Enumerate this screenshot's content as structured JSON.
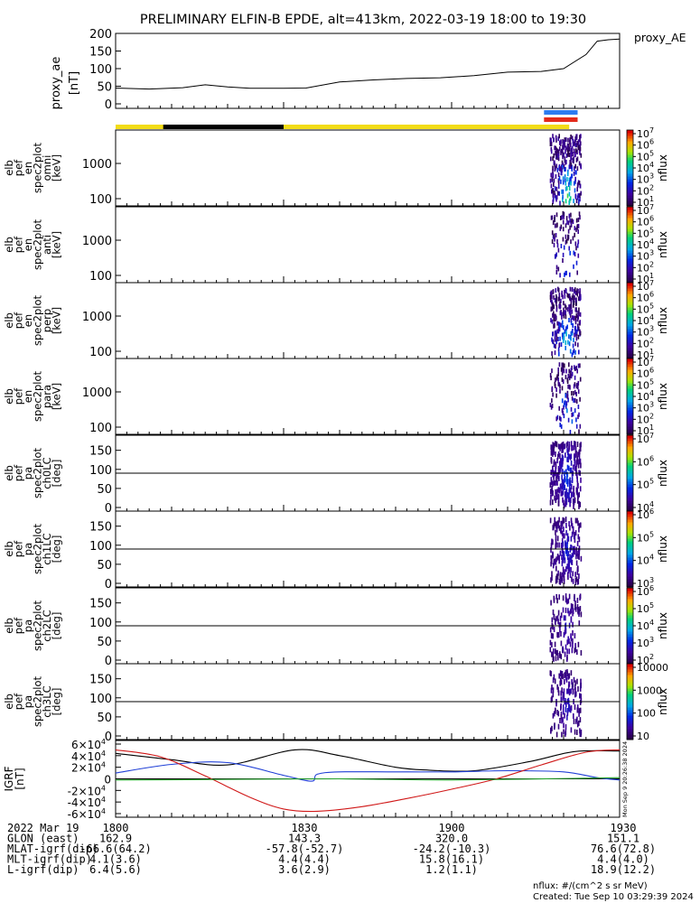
{
  "chart_data": {
    "type": "spectrogram",
    "title": "PRELIMINARY ELFIN-B EPDE, alt=413km, 2022-03-19 18:00 to 19:30",
    "x_time_range": [
      "18:00",
      "19:30"
    ],
    "x_tick_labels": [
      "1800",
      "1830",
      "1900",
      "1930"
    ],
    "proxy_ae": {
      "ylabel_lines": [
        "proxy_ae",
        "[nT]"
      ],
      "legend": "proxy_AE",
      "ylim": [
        0,
        200
      ],
      "yticks": [
        "0",
        "50",
        "100",
        "150",
        "200"
      ],
      "t_min": [
        0,
        6,
        12,
        16,
        20,
        24,
        30,
        34,
        40,
        46,
        52,
        58,
        64,
        70,
        76,
        80,
        84,
        86,
        88,
        90
      ],
      "values": [
        45,
        42,
        46,
        54,
        48,
        44,
        44,
        45,
        62,
        68,
        72,
        74,
        80,
        90,
        92,
        100,
        140,
        178,
        182,
        184
      ]
    },
    "status_bar": {
      "segments": [
        {
          "t0": 0,
          "t1": 81,
          "color": "#f2dc18"
        },
        {
          "t0": 8.5,
          "t1": 30,
          "color": "#000000"
        }
      ],
      "science_zone": {
        "t0": 76.5,
        "t1": 82.5,
        "colors": [
          "#2d7cf0",
          "#e32a1a"
        ]
      }
    },
    "energy_panels": [
      {
        "ylabel_lines": [
          "elb",
          "pef",
          "en",
          "spec2plot",
          "omni",
          "[keV]"
        ],
        "yticks": [
          "100",
          "1000"
        ],
        "intensity": 1.0
      },
      {
        "ylabel_lines": [
          "elb",
          "pef",
          "en",
          "spec2plot",
          "anti",
          "[keV]"
        ],
        "yticks": [
          "100",
          "1000"
        ],
        "intensity": 0.35
      },
      {
        "ylabel_lines": [
          "elb",
          "pef",
          "en",
          "spec2plot",
          "perp",
          "[keV]"
        ],
        "yticks": [
          "100",
          "1000"
        ],
        "intensity": 0.9
      },
      {
        "ylabel_lines": [
          "elb",
          "pef",
          "en",
          "spec2plot",
          "para",
          "[keV]"
        ],
        "yticks": [
          "100",
          "1000"
        ],
        "intensity": 0.45
      }
    ],
    "pitch_panels": [
      {
        "ylabel_lines": [
          "elb",
          "pef",
          "pa",
          "spec2plot",
          "ch0LC",
          "[deg]"
        ],
        "yticks": [
          "0",
          "50",
          "100",
          "150"
        ],
        "intensity": 1.0
      },
      {
        "ylabel_lines": [
          "elb",
          "pef",
          "pa",
          "spec2plot",
          "ch1LC",
          "[deg]"
        ],
        "yticks": [
          "0",
          "50",
          "100",
          "150"
        ],
        "intensity": 0.75
      },
      {
        "ylabel_lines": [
          "elb",
          "pef",
          "pa",
          "spec2plot",
          "ch2LC",
          "[deg]"
        ],
        "yticks": [
          "0",
          "50",
          "100",
          "150"
        ],
        "intensity": 0.5
      },
      {
        "ylabel_lines": [
          "elb",
          "pef",
          "pa",
          "spec2plot",
          "ch3LC",
          "[deg]"
        ],
        "yticks": [
          "0",
          "50",
          "100",
          "150"
        ],
        "intensity": 0.55
      }
    ],
    "colorbars": [
      {
        "label": "nflux",
        "ticks": [
          "10",
          "10",
          "10",
          "10",
          "10",
          "10",
          "10"
        ],
        "exps": [
          "1",
          "2",
          "3",
          "4",
          "5",
          "6",
          "7"
        ]
      },
      {
        "label": "nflux",
        "ticks": [
          "10",
          "10",
          "10",
          "10",
          "10",
          "10",
          "10"
        ],
        "exps": [
          "1",
          "2",
          "3",
          "4",
          "5",
          "6",
          "7"
        ]
      },
      {
        "label": "nflux",
        "ticks": [
          "10",
          "10",
          "10",
          "10",
          "10",
          "10",
          "10"
        ],
        "exps": [
          "1",
          "2",
          "3",
          "4",
          "5",
          "6",
          "7"
        ]
      },
      {
        "label": "nflux",
        "ticks": [
          "10",
          "10",
          "10",
          "10",
          "10",
          "10",
          "10"
        ],
        "exps": [
          "1",
          "2",
          "3",
          "4",
          "5",
          "6",
          "7"
        ]
      },
      {
        "label": "nflux",
        "ticks": [
          "10",
          "10",
          "10",
          "10"
        ],
        "exps": [
          "4",
          "5",
          "6",
          "7"
        ]
      },
      {
        "label": "nflux",
        "ticks": [
          "10",
          "10",
          "10",
          "10"
        ],
        "exps": [
          "3",
          "4",
          "5",
          "6"
        ]
      },
      {
        "label": "nflux",
        "ticks": [
          "10",
          "10",
          "10",
          "10",
          "10"
        ],
        "exps": [
          "2",
          "3",
          "4",
          "5",
          "6"
        ]
      },
      {
        "label": "nflux",
        "ticks": [
          "10",
          "100",
          "1000",
          "10000"
        ],
        "exps": [
          "",
          "",
          "",
          ""
        ]
      }
    ],
    "igrf": {
      "ylabel_lines": [
        "IGRF",
        "[nT]"
      ],
      "ylim": [
        -60000,
        60000
      ],
      "ytick_values": [
        -60000,
        -40000,
        -20000,
        0,
        20000,
        40000,
        60000
      ],
      "ytick_base": [
        "-6×10",
        "-4×10",
        "-2×10",
        "0",
        "2×10",
        "4×10",
        "6×10"
      ],
      "ytick_exp": [
        "4",
        "4",
        "4",
        "",
        "4",
        "4",
        "4"
      ],
      "series": [
        {
          "color": "#000000",
          "t": [
            0,
            10,
            20,
            32,
            40,
            50,
            56,
            64,
            74,
            82,
            90
          ],
          "v": [
            44000,
            33000,
            24000,
            50000,
            40000,
            20000,
            15000,
            14000,
            30000,
            47000,
            48000
          ]
        },
        {
          "color": "#1f3fd6",
          "t": [
            0,
            10,
            20,
            30,
            35,
            36,
            40,
            50,
            60,
            70,
            80,
            86,
            90
          ],
          "v": [
            10000,
            25000,
            28000,
            6000,
            -4000,
            8000,
            12000,
            12000,
            12000,
            14000,
            12000,
            2000,
            -2000
          ]
        },
        {
          "color": "#d01818",
          "t": [
            0,
            8,
            16,
            24,
            30,
            36,
            44,
            52,
            60,
            68,
            76,
            84,
            90
          ],
          "v": [
            50000,
            38000,
            5000,
            -32000,
            -52000,
            -56000,
            -48000,
            -34000,
            -18000,
            0,
            24000,
            46000,
            50000
          ]
        },
        {
          "color": "#22a02a",
          "t": [
            0,
            20,
            40,
            60,
            90
          ],
          "v": [
            -2000,
            -1000,
            0,
            -2000,
            2000
          ]
        }
      ]
    },
    "ephemeris": {
      "rows": [
        {
          "label": "2022 Mar 19",
          "values": [
            "1800",
            "1830",
            "1900",
            "1930"
          ]
        },
        {
          "label": "GLON (east)",
          "values": [
            "162.9",
            "143.3",
            "320.0",
            "151.1"
          ]
        },
        {
          "label": "MLAT-igrf(dip)",
          "values": [
            "-66.6(64.2)",
            "-57.8(-52.7)",
            "-24.2(-10.3)",
            "76.6(72.8)"
          ]
        },
        {
          "label": "MLT-igrf(dip)",
          "values": [
            "4.1(3.6)",
            "4.4(4.4)",
            "15.8(16.1)",
            "4.4(4.0)"
          ]
        },
        {
          "label": "L-igrf(dip)",
          "values": [
            "6.4(5.6)",
            "3.6(2.9)",
            "1.2(1.1)",
            "18.9(12.2)"
          ]
        }
      ]
    },
    "footer": {
      "units": "nflux: #/(cm^2 s sr MeV)",
      "created": "Created: Tue Sep 10 03:29:39 2024",
      "side_stamp": "Mon Sep 9 20:26:38 2024"
    }
  }
}
